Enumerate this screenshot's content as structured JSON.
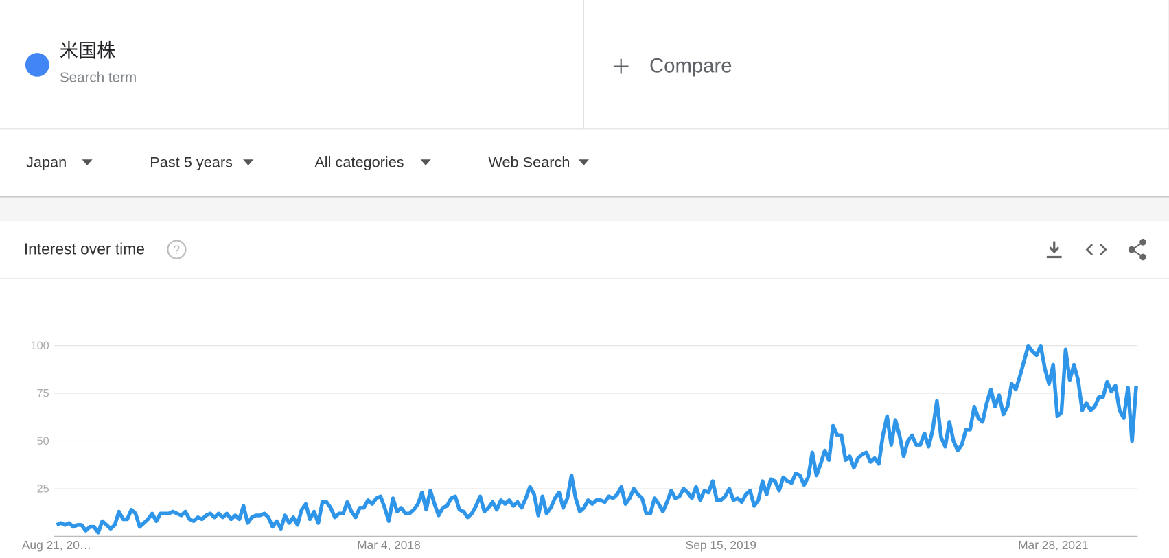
{
  "search_term": {
    "label": "米国株",
    "sublabel": "Search term"
  },
  "compare": "Compare",
  "filters": [
    "Japan",
    "Past 5 years",
    "All categories",
    "Web Search"
  ],
  "chart_data": {
    "type": "line",
    "title": "Interest over time",
    "categories": [
      "Aug 21, 20…",
      null,
      null,
      null,
      null,
      null,
      null,
      null,
      null,
      null,
      null,
      null,
      null,
      null,
      null,
      null,
      null,
      null,
      null,
      null,
      null,
      null,
      null,
      null,
      null,
      null,
      null,
      null,
      null,
      null,
      null,
      null,
      null,
      null,
      null,
      null,
      null,
      null,
      null,
      null,
      null,
      null,
      null,
      null,
      null,
      null,
      null,
      null,
      null,
      null,
      null,
      null,
      null,
      null,
      null,
      null,
      null,
      null,
      null,
      null,
      null,
      null,
      null,
      null,
      null,
      null,
      null,
      null,
      null,
      null,
      null,
      null,
      null,
      null,
      null,
      null,
      null,
      null,
      null,
      null,
      "Mar 4, 2018",
      null,
      null,
      null,
      null,
      null,
      null,
      null,
      null,
      null,
      null,
      null,
      null,
      null,
      null,
      null,
      null,
      null,
      null,
      null,
      null,
      null,
      null,
      null,
      null,
      null,
      null,
      null,
      null,
      null,
      null,
      null,
      null,
      null,
      null,
      null,
      null,
      null,
      null,
      null,
      null,
      null,
      null,
      null,
      null,
      null,
      null,
      null,
      null,
      null,
      null,
      null,
      null,
      null,
      null,
      null,
      null,
      null,
      null,
      null,
      null,
      null,
      null,
      null,
      null,
      null,
      null,
      null,
      null,
      null,
      null,
      null,
      null,
      null,
      null,
      null,
      null,
      null,
      null,
      null,
      "Sep 15, 2019",
      null,
      null,
      null,
      null,
      null,
      null,
      null,
      null,
      null,
      null,
      null,
      null,
      null,
      null,
      null,
      null,
      null,
      null,
      null,
      null,
      null,
      null,
      null,
      null,
      null,
      null,
      null,
      null,
      null,
      null,
      null,
      null,
      null,
      null,
      null,
      null,
      null,
      null,
      null,
      null,
      null,
      null,
      null,
      null,
      null,
      null,
      null,
      null,
      null,
      null,
      null,
      null,
      null,
      null,
      null,
      null,
      null,
      null,
      null,
      null,
      null,
      null,
      null,
      null,
      null,
      null,
      null,
      null,
      null,
      null,
      null,
      null,
      null,
      null,
      null,
      null,
      null,
      null,
      null,
      "Mar 28, 2021",
      null,
      null,
      null,
      null,
      null,
      null,
      null,
      null,
      null,
      null,
      null,
      null,
      null,
      null,
      null,
      null,
      null,
      null,
      null,
      null
    ],
    "values": [
      6,
      7,
      6,
      7,
      5,
      6,
      6,
      3,
      5,
      5,
      2,
      8,
      6,
      4,
      6,
      13,
      9,
      9,
      14,
      12,
      5,
      7,
      9,
      12,
      8,
      12,
      12,
      12,
      13,
      12,
      11,
      13,
      9,
      8,
      10,
      9,
      11,
      12,
      10,
      12,
      10,
      12,
      9,
      11,
      9,
      16,
      7,
      10,
      11,
      11,
      12,
      10,
      5,
      8,
      4,
      11,
      7,
      10,
      6,
      14,
      17,
      9,
      13,
      7,
      18,
      18,
      15,
      10,
      12,
      12,
      18,
      13,
      10,
      15,
      15,
      19,
      17,
      20,
      21,
      15,
      8,
      20,
      13,
      15,
      12,
      12,
      14,
      17,
      23,
      14,
      24,
      17,
      11,
      15,
      16,
      20,
      21,
      14,
      13,
      10,
      12,
      16,
      21,
      13,
      15,
      18,
      14,
      19,
      17,
      19,
      16,
      18,
      15,
      20,
      26,
      22,
      11,
      21,
      12,
      15,
      20,
      23,
      15,
      20,
      32,
      20,
      13,
      15,
      19,
      17,
      19,
      19,
      18,
      21,
      20,
      22,
      26,
      17,
      20,
      25,
      22,
      20,
      12,
      12,
      20,
      17,
      13,
      18,
      24,
      20,
      21,
      25,
      23,
      20,
      26,
      19,
      24,
      23,
      29,
      19,
      19,
      21,
      25,
      19,
      20,
      18,
      22,
      24,
      16,
      19,
      29,
      22,
      30,
      29,
      24,
      31,
      29,
      28,
      33,
      32,
      27,
      31,
      44,
      32,
      38,
      45,
      40,
      58,
      53,
      53,
      40,
      42,
      36,
      41,
      43,
      44,
      39,
      41,
      38,
      53,
      63,
      48,
      61,
      53,
      42,
      50,
      53,
      48,
      48,
      54,
      47,
      56,
      71,
      52,
      47,
      60,
      50,
      45,
      48,
      56,
      56,
      68,
      62,
      60,
      70,
      77,
      68,
      74,
      64,
      68,
      80,
      77,
      84,
      92,
      100,
      97,
      95,
      100,
      88,
      80,
      90,
      63,
      65,
      98,
      82,
      90,
      82,
      66,
      70,
      66,
      68,
      73,
      73,
      81,
      76,
      79,
      66,
      62,
      78,
      50,
      79
    ],
    "color": "#2e95e8",
    "ylim": [
      0,
      100
    ],
    "yticks": [
      25,
      50,
      75,
      100
    ],
    "grid": true
  }
}
